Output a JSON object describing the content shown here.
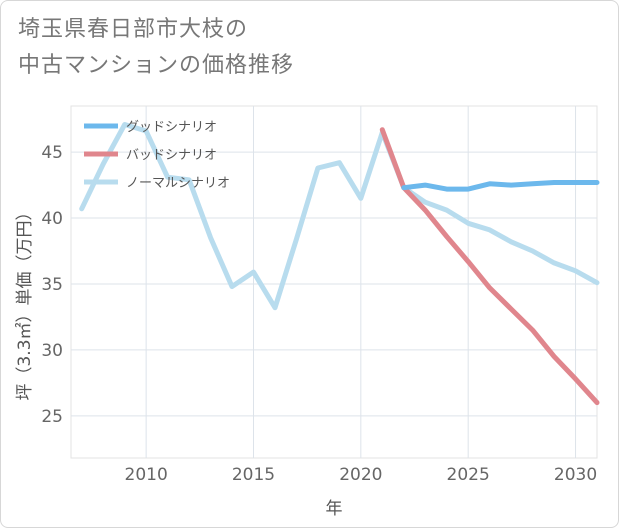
{
  "title_lines": [
    "埼玉県春日部市大枝の",
    "中古マンションの価格推移"
  ],
  "chart_data": {
    "type": "line",
    "title": "埼玉県春日部市大枝の中古マンションの価格推移",
    "xlabel": "年",
    "ylabel": "坪（3.3㎡）単価（万円）",
    "xlim": [
      2006.5,
      2031
    ],
    "ylim": [
      21.8,
      48.5
    ],
    "xticks": [
      2010,
      2015,
      2020,
      2025,
      2030
    ],
    "yticks": [
      25,
      30,
      35,
      40,
      45
    ],
    "grid": true,
    "legend_position": "top-left",
    "series": [
      {
        "name": "グッドシナリオ",
        "color": "#6cb8ec",
        "x": [
          2022,
          2023,
          2024,
          2025,
          2026,
          2027,
          2028,
          2029,
          2030,
          2031
        ],
        "y": [
          42.3,
          42.5,
          42.2,
          42.2,
          42.6,
          42.5,
          42.6,
          42.7,
          42.7,
          42.7
        ]
      },
      {
        "name": "バッドシナリオ",
        "color": "#e0868d",
        "x": [
          2021,
          2022,
          2023,
          2024,
          2025,
          2026,
          2027,
          2028,
          2029,
          2030,
          2031
        ],
        "y": [
          46.7,
          42.3,
          40.6,
          38.6,
          36.7,
          34.7,
          33.1,
          31.5,
          29.5,
          27.8,
          26.0
        ]
      },
      {
        "name": "ノーマルシナリオ",
        "color": "#b8dcee",
        "x": [
          2007,
          2008,
          2009,
          2010,
          2011,
          2012,
          2013,
          2014,
          2015,
          2016,
          2017,
          2018,
          2019,
          2020,
          2021,
          2022,
          2023,
          2024,
          2025,
          2026,
          2027,
          2028,
          2029,
          2030,
          2031
        ],
        "y": [
          40.7,
          44.1,
          47.1,
          46.6,
          43.1,
          42.9,
          38.5,
          34.8,
          35.9,
          33.2,
          38.4,
          43.8,
          44.2,
          41.5,
          46.5,
          42.3,
          41.2,
          40.6,
          39.6,
          39.1,
          38.2,
          37.5,
          36.6,
          36.0,
          35.1
        ]
      }
    ]
  }
}
